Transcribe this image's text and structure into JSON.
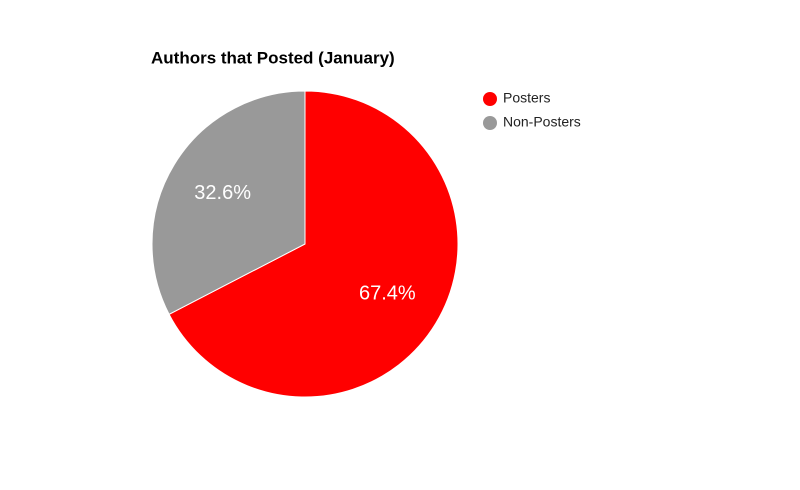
{
  "chart_data": {
    "type": "pie",
    "title": "Authors that Posted (January)",
    "categories": [
      "Posters",
      "Non-Posters"
    ],
    "values": [
      67.4,
      32.6
    ],
    "value_labels": [
      "67.4%",
      "32.6%"
    ],
    "colors": [
      "#ff0000",
      "#999999"
    ]
  }
}
